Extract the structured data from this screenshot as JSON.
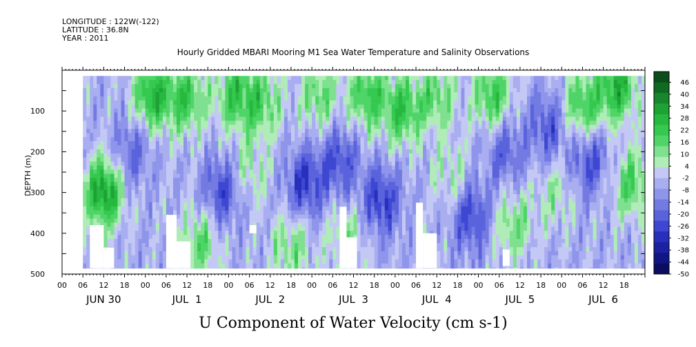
{
  "header": {
    "longitude": "LONGITUDE : 122W(-122)",
    "latitude": "LATITUDE : 36.8N",
    "year": "YEAR : 2011"
  },
  "chart_data": {
    "type": "heatmap",
    "title": "Hourly Gridded MBARI Mooring M1 Sea Water Temperature and Salinity Observations",
    "variable_title": "U Component of Water Velocity (cm s-1)",
    "ylabel": "DEPTH (m)",
    "y_inverted": true,
    "ylim": [
      0,
      500
    ],
    "y_ticks": [
      100,
      200,
      300,
      400,
      500
    ],
    "data_depth_range": [
      14,
      486
    ],
    "x_start_hour": 0,
    "x_end_hour": 168,
    "data_start_hour": 6,
    "x_hour_ticks": [
      "00",
      "06",
      "12",
      "18"
    ],
    "day_labels": [
      "JUN 30",
      "JUL  1",
      "JUL  2",
      "JUL  3",
      "JUL  4",
      "JUL  5",
      "JUL  6"
    ],
    "colorbar": {
      "labels": [
        46,
        40,
        34,
        28,
        22,
        16,
        10,
        4,
        -2,
        -8,
        -14,
        -20,
        -26,
        -32,
        -38,
        -44,
        -50
      ],
      "colors": [
        "#0a4d1a",
        "#106a22",
        "#17862c",
        "#1ea135",
        "#27b83f",
        "#35c950",
        "#4fd567",
        "#7fe08f",
        "#b0ecb8",
        "#c4c8f5",
        "#a9aef0",
        "#8e95ea",
        "#737be3",
        "#5a63dc",
        "#3d47d2",
        "#2630bd",
        "#1a22a2",
        "#101683",
        "#0a0d60"
      ],
      "range": [
        -50,
        52
      ]
    },
    "features": [
      {
        "hour": 12,
        "depth": 300,
        "value": 34
      },
      {
        "hour": 26,
        "depth": 60,
        "value": 28
      },
      {
        "hour": 36,
        "depth": 70,
        "value": 22
      },
      {
        "hour": 50,
        "depth": 60,
        "value": 22
      },
      {
        "hour": 58,
        "depth": 80,
        "value": 16
      },
      {
        "hour": 40,
        "depth": 420,
        "value": 16
      },
      {
        "hour": 66,
        "depth": 430,
        "value": 14
      },
      {
        "hour": 54,
        "depth": 250,
        "value": 8
      },
      {
        "hour": 74,
        "depth": 60,
        "value": 16
      },
      {
        "hour": 82,
        "depth": 420,
        "value": 12
      },
      {
        "hour": 88,
        "depth": 60,
        "value": 22
      },
      {
        "hour": 98,
        "depth": 100,
        "value": 22
      },
      {
        "hour": 108,
        "depth": 60,
        "value": 16
      },
      {
        "hour": 112,
        "depth": 260,
        "value": 8
      },
      {
        "hour": 124,
        "depth": 60,
        "value": 22
      },
      {
        "hour": 130,
        "depth": 380,
        "value": 14
      },
      {
        "hour": 142,
        "depth": 300,
        "value": 8
      },
      {
        "hour": 150,
        "depth": 90,
        "value": 22
      },
      {
        "hour": 160,
        "depth": 40,
        "value": 28
      },
      {
        "hour": 164,
        "depth": 280,
        "value": 18
      },
      {
        "hour": 20,
        "depth": 200,
        "value": -20
      },
      {
        "hour": 46,
        "depth": 300,
        "value": -26
      },
      {
        "hour": 70,
        "depth": 280,
        "value": -28
      },
      {
        "hour": 80,
        "depth": 220,
        "value": -24
      },
      {
        "hour": 92,
        "depth": 320,
        "value": -28
      },
      {
        "hour": 118,
        "depth": 360,
        "value": -26
      },
      {
        "hour": 128,
        "depth": 200,
        "value": -20
      },
      {
        "hour": 140,
        "depth": 140,
        "value": -22
      },
      {
        "hour": 152,
        "depth": 220,
        "value": -24
      }
    ],
    "missing_regions": [
      {
        "hour_start": 8,
        "hour_end": 12,
        "depth_start": 380,
        "depth_end": 486
      },
      {
        "hour_start": 12,
        "hour_end": 15,
        "depth_start": 435,
        "depth_end": 486
      },
      {
        "hour_start": 30,
        "hour_end": 33,
        "depth_start": 355,
        "depth_end": 486
      },
      {
        "hour_start": 33,
        "hour_end": 37,
        "depth_start": 420,
        "depth_end": 486
      },
      {
        "hour_start": 54,
        "hour_end": 56,
        "depth_start": 380,
        "depth_end": 400
      },
      {
        "hour_start": 80,
        "hour_end": 82,
        "depth_start": 335,
        "depth_end": 486
      },
      {
        "hour_start": 82,
        "hour_end": 85,
        "depth_start": 410,
        "depth_end": 486
      },
      {
        "hour_start": 102,
        "hour_end": 104,
        "depth_start": 325,
        "depth_end": 486
      },
      {
        "hour_start": 104,
        "hour_end": 108,
        "depth_start": 400,
        "depth_end": 486
      },
      {
        "hour_start": 127,
        "hour_end": 129,
        "depth_start": 440,
        "depth_end": 480
      }
    ]
  }
}
